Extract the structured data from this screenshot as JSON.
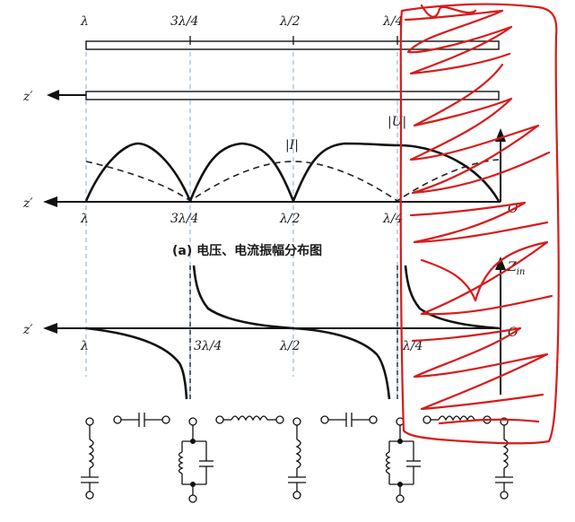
{
  "transmission_line": {
    "top_labels": [
      "λ",
      "3λ/4",
      "λ/2",
      "λ/4"
    ],
    "z_axis_label": "z′"
  },
  "amplitude_plot": {
    "voltage_label": "|U|",
    "current_label": "|I|",
    "axis_label": "z′",
    "origin_label": "O",
    "tick_labels": [
      "λ",
      "3λ/4",
      "λ/2",
      "λ/4"
    ],
    "caption": "(a) 电压、电流振幅分布图"
  },
  "impedance_plot": {
    "axis_label": "z′",
    "y_label": "Z",
    "y_label_sub": "in",
    "origin_label": "O",
    "tick_labels": [
      "λ",
      "3λ/4",
      "λ/2",
      "λ/4"
    ]
  },
  "equivalent_circuits": {
    "items": [
      "series-LC",
      "capacitor",
      "parallel-LC",
      "inductor",
      "series-LC",
      "capacitor",
      "parallel-LC",
      "inductor",
      "series-LC"
    ]
  },
  "colors": {
    "line": "#111111",
    "guide": "#8fb3d9",
    "annotation": "#d91a1a"
  }
}
